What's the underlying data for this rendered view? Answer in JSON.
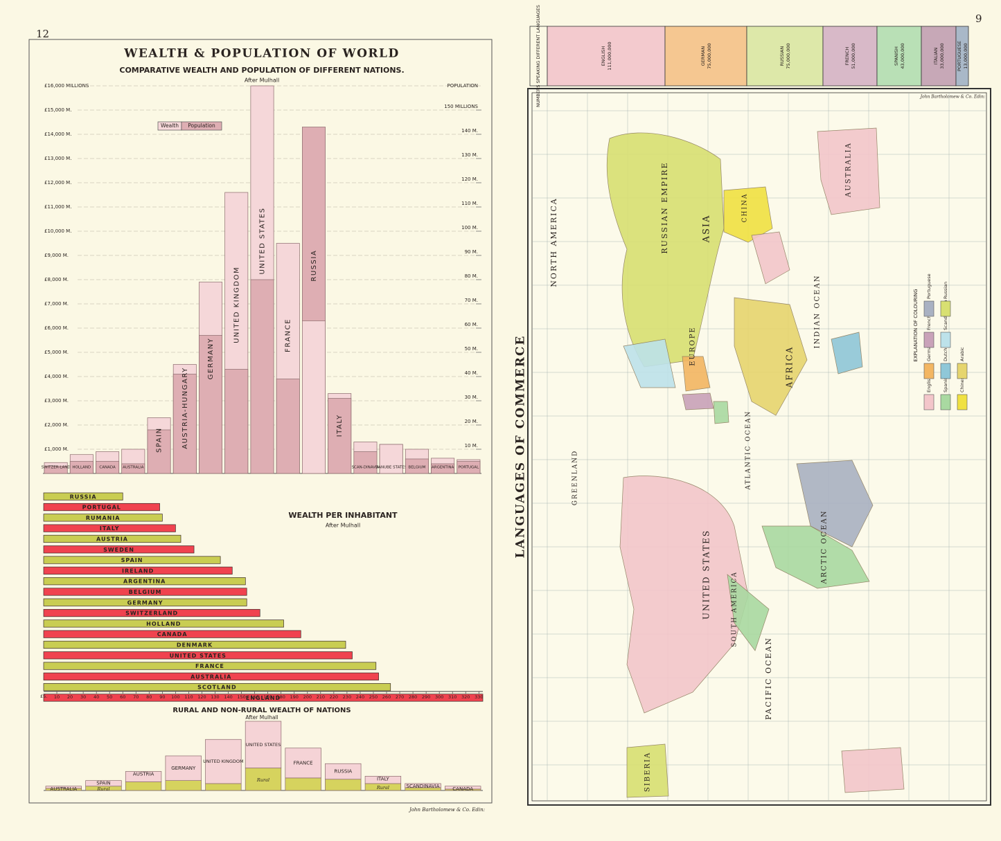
{
  "page_numbers": {
    "left": "12",
    "right": "9"
  },
  "credit": "John Bartholomew & Co. Edin:",
  "chart_data": [
    {
      "type": "bar",
      "title": "WEALTH & POPULATION OF WORLD",
      "subtitle": "COMPARATIVE WEALTH AND POPULATION OF DIFFERENT NATIONS.",
      "note": "After Mulhall",
      "y2label": "POPULATION",
      "categories": [
        "SWITZER-LAND",
        "HOLLAND",
        "CANADA",
        "AUSTRALIA",
        "SPAIN",
        "AUSTRIA-HUNGARY",
        "GERMANY",
        "UNITED KINGDOM",
        "UNITED STATES",
        "FRANCE",
        "RUSSIA",
        "ITALY",
        "SCAN-DINAVIA",
        "DANUBE STATES",
        "BELGIUM",
        "ARGENTINA",
        "PORTUGAL"
      ],
      "series": [
        {
          "name": "Wealth",
          "color": "#f5d7d9",
          "values": [
            450,
            780,
            900,
            1000,
            2300,
            4500,
            7900,
            11600,
            16000,
            9500,
            6300,
            3300,
            1300,
            1200,
            1000,
            630,
            570
          ]
        },
        {
          "name": "Population",
          "color": "#deaeb3",
          "axis": "y2",
          "values": [
            3,
            5,
            5,
            4,
            18,
            41,
            57,
            43,
            80,
            39,
            143,
            31,
            9,
            12,
            6,
            4,
            5
          ]
        }
      ],
      "ylim": [
        0,
        16000
      ],
      "yticks": [
        {
          "value": 1000,
          "label": "£1,000 M."
        },
        {
          "value": 2000,
          "label": "£2,000 M."
        },
        {
          "value": 3000,
          "label": "£3,000 M."
        },
        {
          "value": 4000,
          "label": "£4,000 M."
        },
        {
          "value": 5000,
          "label": "£5,000 M."
        },
        {
          "value": 6000,
          "label": "£6,000 M."
        },
        {
          "value": 7000,
          "label": "£7,000 M."
        },
        {
          "value": 8000,
          "label": "£8,000 M."
        },
        {
          "value": 9000,
          "label": "£9,000 M."
        },
        {
          "value": 10000,
          "label": "£10,000 M."
        },
        {
          "value": 11000,
          "label": "£11,000 M."
        },
        {
          "value": 12000,
          "label": "£12,000 M."
        },
        {
          "value": 13000,
          "label": "£13,000 M."
        },
        {
          "value": 14000,
          "label": "£14,000 M."
        },
        {
          "value": 15000,
          "label": "£15,000 M."
        },
        {
          "value": 16000,
          "label": "£16,000 MILLIONS"
        }
      ],
      "y2lim": [
        0,
        160
      ],
      "y2ticks": [
        {
          "value": 10,
          "label": "10 M."
        },
        {
          "value": 20,
          "label": "20 M."
        },
        {
          "value": 30,
          "label": "30 M."
        },
        {
          "value": 40,
          "label": "40 M."
        },
        {
          "value": 50,
          "label": "50 M."
        },
        {
          "value": 60,
          "label": "60 M."
        },
        {
          "value": 70,
          "label": "70 M."
        },
        {
          "value": 80,
          "label": "80 M."
        },
        {
          "value": 90,
          "label": "90 M."
        },
        {
          "value": 100,
          "label": "100 M."
        },
        {
          "value": 110,
          "label": "110 M."
        },
        {
          "value": 120,
          "label": "120 M."
        },
        {
          "value": 130,
          "label": "130 M."
        },
        {
          "value": 140,
          "label": "140 M."
        },
        {
          "value": 150,
          "label": "150 MILLIONS"
        }
      ],
      "grid": true
    },
    {
      "type": "hbar",
      "title": "WEALTH PER INHABITANT",
      "note": "After Mulhall",
      "xlabel": "£S.",
      "categories": [
        "RUSSIA",
        "PORTUGAL",
        "RUMANIA",
        "ITALY",
        "AUSTRIA",
        "SWEDEN",
        "SPAIN",
        "IRELAND",
        "ARGENTINA",
        "BELGIUM",
        "GERMANY",
        "SWITZERLAND",
        "HOLLAND",
        "CANADA",
        "DENMARK",
        "UNITED STATES",
        "FRANCE",
        "AUSTRALIA",
        "SCOTLAND",
        "ENGLAND"
      ],
      "values": [
        60,
        88,
        90,
        100,
        104,
        114,
        134,
        143,
        153,
        154,
        154,
        164,
        182,
        195,
        229,
        234,
        252,
        254,
        263,
        333
      ],
      "colors": [
        "#c9cd52",
        "#f0434f",
        "#c9cd52",
        "#f0434f",
        "#c9cd52",
        "#f0434f",
        "#c9cd52",
        "#f0434f",
        "#c9cd52",
        "#f0434f",
        "#c9cd52",
        "#f0434f",
        "#c9cd52",
        "#f0434f",
        "#c9cd52",
        "#f0434f",
        "#c9cd52",
        "#f0434f",
        "#c9cd52",
        "#f0434f"
      ],
      "xlim": [
        0,
        333
      ],
      "xticks": [
        10,
        20,
        30,
        40,
        50,
        60,
        70,
        80,
        90,
        100,
        110,
        120,
        130,
        140,
        150,
        160,
        170,
        180,
        190,
        200,
        210,
        220,
        230,
        240,
        250,
        260,
        270,
        280,
        290,
        300,
        310,
        320,
        330
      ]
    },
    {
      "type": "stacked-bar",
      "title": "RURAL AND NON-RURAL WEALTH OF NATIONS",
      "note": "After Mulhall",
      "categories": [
        "AUSTRALIA",
        "SPAIN",
        "AUSTRIA",
        "GERMANY",
        "UNITED KINGDOM",
        "UNITED STATES",
        "FRANCE",
        "RUSSIA",
        "ITALY",
        "SCANDINAVIA",
        "CANADA"
      ],
      "series": [
        {
          "name": "Rural",
          "color": "#d6d35e",
          "values": [
            500,
            1000,
            2000,
            2300,
            1600,
            5200,
            2900,
            2600,
            1600,
            650,
            330
          ]
        },
        {
          "color": "#f5d3d6",
          "values": [
            500,
            1300,
            2400,
            5700,
            10200,
            10800,
            6900,
            3600,
            1700,
            950,
            670
          ]
        }
      ]
    }
  ],
  "languages": {
    "title": "NUMBERS SPEAKING DIFFERENT LANGUAGES",
    "items": [
      {
        "name": "ENGLISH",
        "number": "111,000,000",
        "color": "#f3cace"
      },
      {
        "name": "GERMAN",
        "number": "75,000,000",
        "color": "#f5c791"
      },
      {
        "name": "RUSSIAN",
        "number": "75,000,000",
        "color": "#dde8a9"
      },
      {
        "name": "FRENCH",
        "number": "51,000,000",
        "color": "#d8b9c8"
      },
      {
        "name": "SPANISH",
        "number": "43,000,000",
        "color": "#b9e0b6"
      },
      {
        "name": "ITALIAN",
        "number": "33,000,000",
        "color": "#c7a8b7"
      },
      {
        "name": "PORTUGUESE",
        "number": "13,000,000",
        "color": "#a9b8c8"
      }
    ]
  },
  "map": {
    "title": "LANGUAGES OF COMMERCE",
    "labels": [
      "ASIA",
      "RUSSIAN EMPIRE",
      "CHINA",
      "EUROPE",
      "AFRICA",
      "AUSTRALIA",
      "GREENLAND",
      "NORTH AMERICA",
      "UNITED STATES",
      "SOUTH AMERICA",
      "ARCTIC OCEAN",
      "PACIFIC OCEAN",
      "ATLANTIC OCEAN",
      "INDIAN OCEAN",
      "SIBERIA"
    ],
    "legend": {
      "title": "EXPLANATION OF COLOURING",
      "items": [
        {
          "name": "English",
          "color": "#f3c6ca"
        },
        {
          "name": "German",
          "color": "#f3b662"
        },
        {
          "name": "French",
          "color": "#c9a2b9"
        },
        {
          "name": "Portuguese",
          "color": "#a9b1c2"
        },
        {
          "name": "Spanish",
          "color": "#a9d9a1"
        },
        {
          "name": "Dutch",
          "color": "#8fc7d8"
        },
        {
          "name": "Scandinavian",
          "color": "#bde2ea"
        },
        {
          "name": "Russian",
          "color": "#d8e072"
        },
        {
          "name": "Chinese",
          "color": "#f0e142"
        },
        {
          "name": "Arabic",
          "color": "#e6d56e"
        }
      ]
    }
  }
}
